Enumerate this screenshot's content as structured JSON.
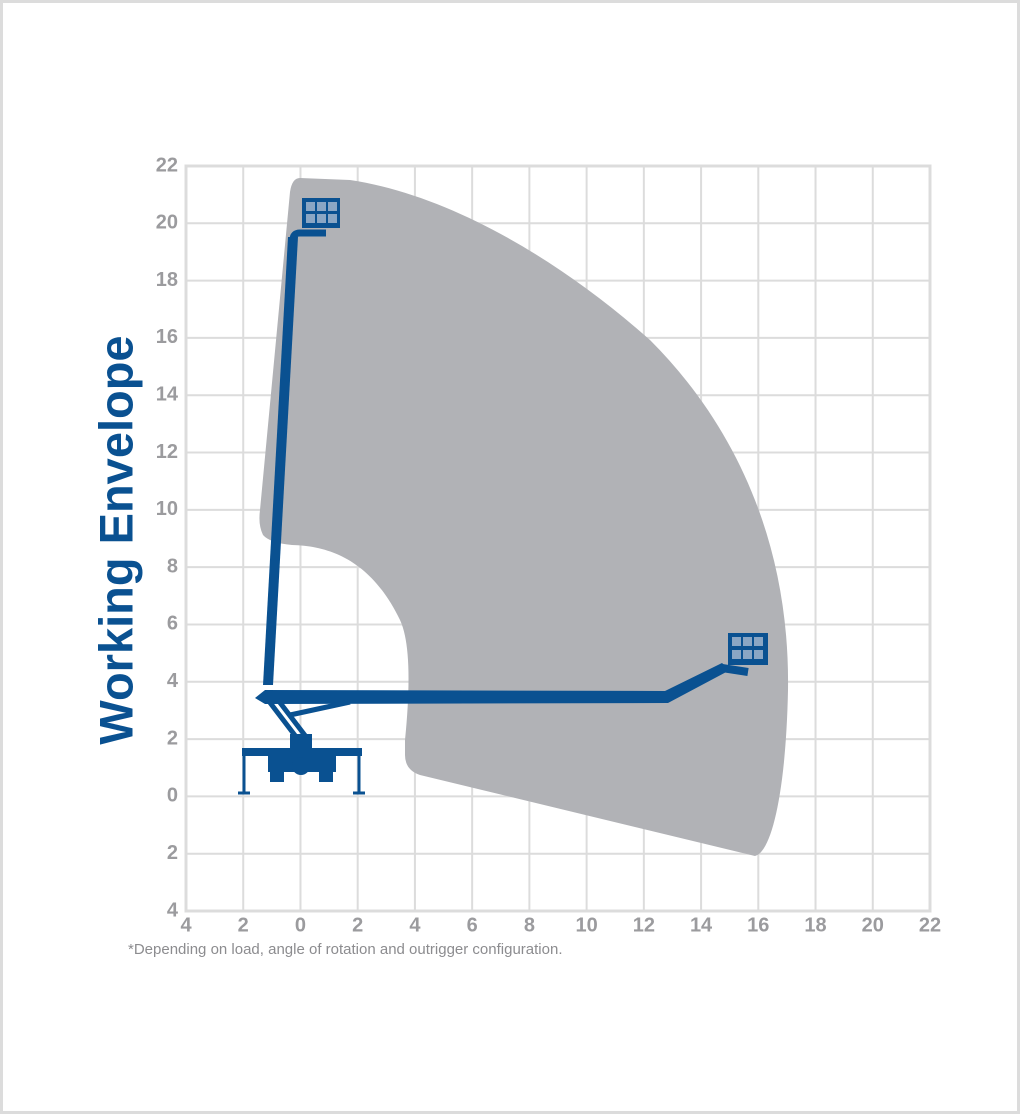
{
  "chart_data": {
    "type": "area",
    "title": "Working Envelope",
    "annotation": "*Depending on load, angle of rotation and outrigger configuration.",
    "xlim": [
      -4,
      22
    ],
    "ylim": [
      -4,
      22
    ],
    "xticks": [
      {
        "value": -4,
        "label": "4"
      },
      {
        "value": -2,
        "label": "2"
      },
      0,
      2,
      4,
      6,
      8,
      10,
      12,
      14,
      16,
      18,
      20,
      22
    ],
    "yticks": [
      {
        "value": -4,
        "label": "4"
      },
      {
        "value": -2,
        "label": "2"
      },
      0,
      2,
      4,
      6,
      8,
      10,
      12,
      14,
      16,
      18,
      20,
      22
    ],
    "grid": true
  }
}
